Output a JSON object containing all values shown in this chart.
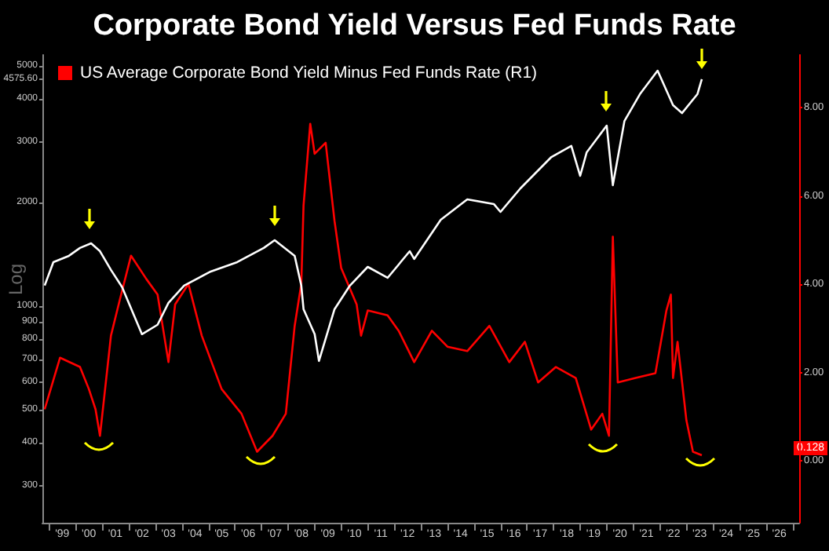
{
  "chart_data": {
    "type": "line",
    "title": "Corporate Bond Yield Versus Fed Funds Rate",
    "ylabel": "Log",
    "annotations": [
      "0.128"
    ],
    "log": "y",
    "grid": false,
    "legend": "top left",
    "xlim": [
      "1998-10",
      "2027-04"
    ],
    "xticks": [
      {
        "value": "1999-01",
        "label": null
      },
      {
        "value": "1999-07",
        "label": "'99"
      },
      {
        "value": "2000-01",
        "label": null
      },
      {
        "value": "2000-07",
        "label": "'00"
      },
      {
        "value": "2001-01",
        "label": null
      },
      {
        "value": "2001-07",
        "label": "'01"
      },
      {
        "value": "2002-01",
        "label": null
      },
      {
        "value": "2002-07",
        "label": "'02"
      },
      {
        "value": "2003-01",
        "label": null
      },
      {
        "value": "2003-07",
        "label": "'03"
      },
      {
        "value": "2004-01",
        "label": null
      },
      {
        "value": "2004-07",
        "label": "'04"
      },
      {
        "value": "2005-01",
        "label": null
      },
      {
        "value": "2005-07",
        "label": "'05"
      },
      {
        "value": "2006-01",
        "label": null
      },
      {
        "value": "2006-07",
        "label": "'06"
      },
      {
        "value": "2007-01",
        "label": null
      },
      {
        "value": "2007-07",
        "label": "'07"
      },
      {
        "value": "2008-01",
        "label": null
      },
      {
        "value": "2008-07",
        "label": "'08"
      },
      {
        "value": "2009-01",
        "label": null
      },
      {
        "value": "2009-07",
        "label": "'09"
      },
      {
        "value": "2010-01",
        "label": null
      },
      {
        "value": "2010-07",
        "label": "'10"
      },
      {
        "value": "2011-01",
        "label": null
      },
      {
        "value": "2011-07",
        "label": "'11"
      },
      {
        "value": "2012-01",
        "label": null
      },
      {
        "value": "2012-07",
        "label": "'12"
      },
      {
        "value": "2013-01",
        "label": null
      },
      {
        "value": "2013-07",
        "label": "'13"
      },
      {
        "value": "2014-01",
        "label": null
      },
      {
        "value": "2014-07",
        "label": "'14"
      },
      {
        "value": "2015-01",
        "label": null
      },
      {
        "value": "2015-07",
        "label": "'15"
      },
      {
        "value": "2016-01",
        "label": null
      },
      {
        "value": "2016-07",
        "label": "'16"
      },
      {
        "value": "2017-01",
        "label": null
      },
      {
        "value": "2017-07",
        "label": "'17"
      },
      {
        "value": "2018-01",
        "label": null
      },
      {
        "value": "2018-07",
        "label": "'18"
      },
      {
        "value": "2019-01",
        "label": null
      },
      {
        "value": "2019-07",
        "label": "'19"
      },
      {
        "value": "2020-01",
        "label": null
      },
      {
        "value": "2020-07",
        "label": "'20"
      },
      {
        "value": "2021-01",
        "label": null
      },
      {
        "value": "2021-07",
        "label": "'21"
      },
      {
        "value": "2022-01",
        "label": null
      },
      {
        "value": "2022-07",
        "label": "'22"
      },
      {
        "value": "2023-01",
        "label": null
      },
      {
        "value": "2023-07",
        "label": "'23"
      },
      {
        "value": "2024-01",
        "label": null
      },
      {
        "value": "2024-07",
        "label": "'24"
      },
      {
        "value": "2025-01",
        "label": null
      },
      {
        "value": "2025-07",
        "label": "'25"
      },
      {
        "value": "2026-01",
        "label": null
      },
      {
        "value": "2026-07",
        "label": "'26"
      },
      {
        "value": "2027-01",
        "label": null
      }
    ],
    "ylim": [
      234,
      5380
    ],
    "yticks": [
      300,
      400,
      500,
      600,
      700,
      800,
      900,
      1000,
      2000,
      3000,
      4000,
      {
        "value": 4575.6,
        "label": "4575.60"
      },
      5000
    ],
    "y2lim": [
      -1.4,
      9.2
    ],
    "y2ticks": [
      {
        "value": 0,
        "label": "0.00"
      },
      {
        "value": 2,
        "label": "2.00"
      },
      {
        "value": 4,
        "label": "4.00"
      },
      {
        "value": 6,
        "label": "6.00"
      },
      {
        "value": 8,
        "label": "8.00"
      }
    ],
    "series": [
      {
        "name": "US Average Corporate Bond Yield Minus Fed Funds Rate (R1)",
        "color": "#ff0000",
        "axis": "y2",
        "x": [
          "1998-11",
          "1999-06",
          "2000-03",
          "2000-07",
          "2000-10",
          "2000-12",
          "2001-05",
          "2001-09",
          "2002-02",
          "2002-09",
          "2003-02",
          "2003-07",
          "2003-10",
          "2004-04",
          "2004-10",
          "2005-07",
          "2006-04",
          "2006-11",
          "2007-06",
          "2007-12",
          "2008-04",
          "2008-07",
          "2008-08",
          "2008-11",
          "2009-01",
          "2009-06",
          "2009-10",
          "2010-01",
          "2010-08",
          "2010-10",
          "2011-01",
          "2011-10",
          "2012-03",
          "2012-10",
          "2013-06",
          "2014-01",
          "2014-10",
          "2015-08",
          "2016-05",
          "2016-12",
          "2017-06",
          "2018-02",
          "2018-11",
          "2019-06",
          "2019-11",
          "2020-02",
          "2020-03-25",
          "2020-06",
          "2021-02",
          "2021-11",
          "2022-04",
          "2022-06",
          "2022-07",
          "2022-09",
          "2023-01",
          "2023-04",
          "2023-08"
        ],
        "values": [
          1.17,
          2.34,
          2.13,
          1.63,
          1.17,
          0.57,
          2.84,
          3.66,
          4.65,
          4.12,
          3.77,
          2.24,
          3.55,
          4.01,
          2.84,
          1.63,
          1.07,
          0.21,
          0.57,
          1.07,
          3.06,
          4.01,
          5.79,
          7.64,
          6.96,
          7.21,
          5.44,
          4.37,
          3.55,
          2.84,
          3.41,
          3.3,
          2.95,
          2.24,
          2.95,
          2.59,
          2.49,
          3.06,
          2.24,
          2.7,
          1.78,
          2.13,
          1.88,
          0.71,
          1.07,
          0.57,
          5.08,
          1.78,
          1.88,
          1.99,
          3.41,
          3.77,
          1.88,
          2.7,
          0.92,
          0.21,
          0.13
        ]
      },
      {
        "color": "#ffffff",
        "x": [
          "1998-11",
          "1999-03",
          "1999-10",
          "2000-03",
          "2000-08",
          "2000-12",
          "2001-05",
          "2001-10",
          "2002-07",
          "2003-02",
          "2003-07",
          "2004-02",
          "2005-02",
          "2006-02",
          "2007-02",
          "2007-07",
          "2008-04",
          "2008-07",
          "2008-08",
          "2009-01",
          "2009-03",
          "2009-10",
          "2010-05",
          "2011-01",
          "2011-10",
          "2012-08",
          "2012-10",
          "2013-10",
          "2014-10",
          "2015-10",
          "2016-01",
          "2016-10",
          "2017-12",
          "2018-09",
          "2019-01",
          "2019-04",
          "2020-01",
          "2020-03-25",
          "2020-09",
          "2021-04",
          "2021-12",
          "2022-07",
          "2022-11",
          "2023-06",
          "2023-08"
        ],
        "values": [
          1147,
          1342,
          1400,
          1476,
          1522,
          1444,
          1274,
          1135,
          828,
          882,
          1021,
          1147,
          1260,
          1342,
          1476,
          1555,
          1400,
          1147,
          979,
          828,
          692,
          979,
          1147,
          1300,
          1208,
          1444,
          1371,
          1783,
          2044,
          1981,
          1879,
          2200,
          2715,
          2924,
          2393,
          2803,
          3350,
          2247,
          3458,
          4135,
          4841,
          3841,
          3644,
          4135,
          4575.6
        ]
      }
    ]
  }
}
